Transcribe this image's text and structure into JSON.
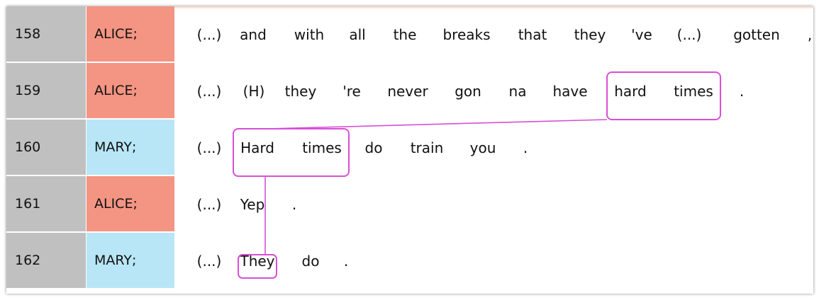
{
  "rows": [
    {
      "number": "158",
      "speaker": "ALICE;",
      "tokens": [
        "(...)",
        "and",
        "with",
        "all",
        "the",
        "breaks",
        "that",
        "they",
        "'ve",
        "(...)",
        "gotten",
        ","
      ]
    },
    {
      "number": "159",
      "speaker": "ALICE;",
      "tokens": [
        "(...)",
        "(H)",
        "they",
        "'re",
        "never",
        "gon",
        "na",
        "have",
        "hard",
        "times",
        "."
      ]
    },
    {
      "number": "160",
      "speaker": "MARY;",
      "tokens": [
        "(...)",
        "Hard",
        "times",
        "do",
        "train",
        "you",
        "."
      ]
    },
    {
      "number": "161",
      "speaker": "ALICE;",
      "tokens": [
        "(...)",
        "Yep",
        "."
      ]
    },
    {
      "number": "162",
      "speaker": "MARY;",
      "tokens": [
        "(...)",
        "They",
        "do",
        "."
      ]
    }
  ],
  "colors": {
    "alice": "#f49483",
    "mary": "#b8e6f6",
    "row_number_bg": "#c0c0c0",
    "coreference_link": "#d84fd6"
  }
}
